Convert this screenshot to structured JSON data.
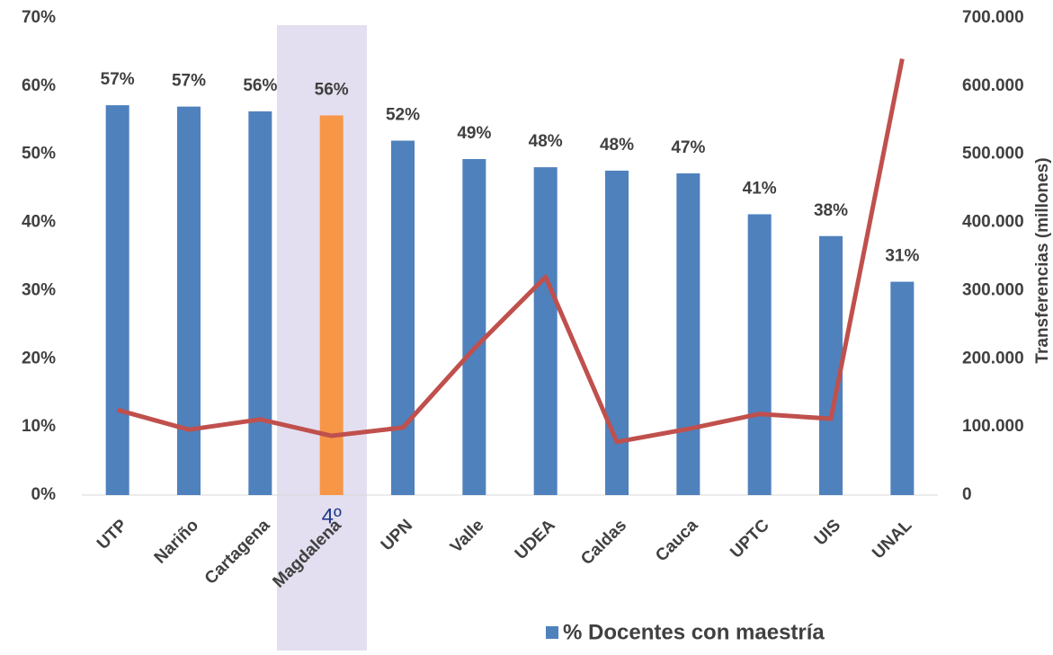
{
  "chart_data": {
    "type": "bar-line",
    "categories": [
      "UTP",
      "Nariño",
      "Cartagena",
      "Magdalena",
      "UPN",
      "Valle",
      "UDEA",
      "Caldas",
      "Cauca",
      "UPTC",
      "UIS",
      "UNAL"
    ],
    "series": [
      {
        "name": "% Docentes con maestría",
        "type": "bar",
        "color": "#4f81bd",
        "colors": [
          "#4f81bd",
          "#4f81bd",
          "#4f81bd",
          "#f79646",
          "#4f81bd",
          "#4f81bd",
          "#4f81bd",
          "#4f81bd",
          "#4f81bd",
          "#4f81bd",
          "#4f81bd",
          "#4f81bd"
        ],
        "values": [
          57.2,
          57.0,
          56.3,
          55.7,
          52.0,
          49.3,
          48.1,
          47.6,
          47.2,
          41.2,
          38.0,
          31.3
        ],
        "value_labels": [
          "57%",
          "57%",
          "56%",
          "56%",
          "52%",
          "49%",
          "48%",
          "48%",
          "47%",
          "41%",
          "38%",
          "31%"
        ]
      },
      {
        "type": "line",
        "axis": "y2",
        "color": "#c0504d",
        "values": [
          125000,
          96000,
          111000,
          87000,
          99000,
          215000,
          320000,
          78000,
          97000,
          119000,
          112000,
          640000
        ]
      }
    ],
    "ylim": [
      0,
      70
    ],
    "yticks": [
      {
        "value": 0,
        "label": "0%"
      },
      {
        "value": 10,
        "label": "10%"
      },
      {
        "value": 20,
        "label": "20%"
      },
      {
        "value": 30,
        "label": "30%"
      },
      {
        "value": 40,
        "label": "40%"
      },
      {
        "value": 50,
        "label": "50%"
      },
      {
        "value": 60,
        "label": "60%"
      },
      {
        "value": 70,
        "label": "70%"
      }
    ],
    "y2lim": [
      0,
      700000
    ],
    "y2ticks": [
      0,
      {
        "value": 100000,
        "label": "100.000"
      },
      {
        "value": 200000,
        "label": "200.000"
      },
      {
        "value": 300000,
        "label": "300.000"
      },
      {
        "value": 400000,
        "label": "400.000"
      },
      {
        "value": 500000,
        "label": "500.000"
      },
      {
        "value": 600000,
        "label": "600.000"
      },
      {
        "value": 700000,
        "label": "700.000"
      }
    ],
    "y2label": "Transferencias (millones)",
    "highlight_category": 3,
    "annotation": "4º",
    "legend": "bottom-right"
  }
}
